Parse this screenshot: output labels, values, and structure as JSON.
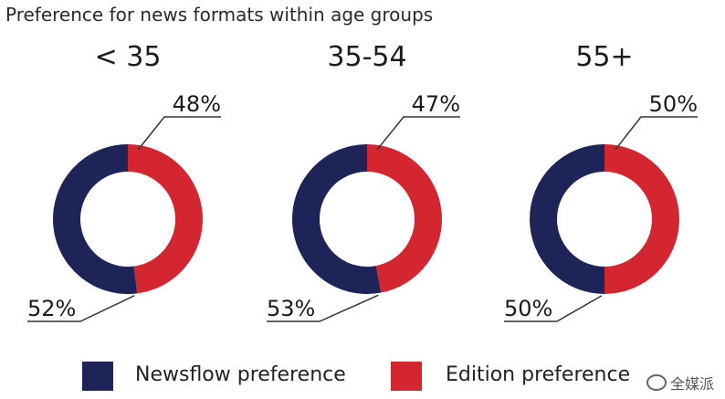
{
  "title": "Preference for news formats within age groups",
  "colors": {
    "newsflow": "#1e2457",
    "edition": "#d42630",
    "leader": "#333333"
  },
  "chart_data": {
    "type": "pie",
    "title": "Preference for news formats within age groups",
    "series_names": [
      "Newsflow preference",
      "Edition preference"
    ],
    "groups": [
      {
        "label": "< 35",
        "newsflow": 52,
        "edition": 48,
        "newsflow_label": "52%",
        "edition_label": "48%"
      },
      {
        "label": "35-54",
        "newsflow": 53,
        "edition": 47,
        "newsflow_label": "53%",
        "edition_label": "47%"
      },
      {
        "label": "55+",
        "newsflow": 50,
        "edition": 50,
        "newsflow_label": "50%",
        "edition_label": "50%"
      }
    ]
  },
  "legend": {
    "newsflow": "Newsflow preference",
    "edition": "Edition preference"
  },
  "watermark": "全媒派"
}
